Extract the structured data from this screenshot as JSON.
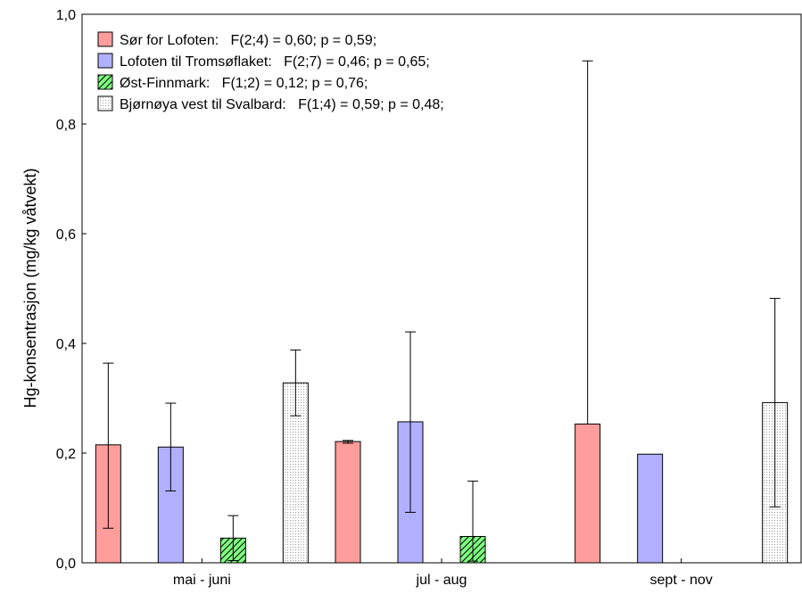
{
  "chart_data": {
    "type": "bar",
    "title": "",
    "xlabel": "",
    "ylabel": "Hg-konsentrasjon (mg/kg våtvekt)",
    "ylim": [
      0,
      1.0
    ],
    "yticks": [
      "0,0",
      "0,2",
      "0,4",
      "0,6",
      "0,8",
      "1,0"
    ],
    "grid": false,
    "legend_position": "top-left",
    "categories": [
      "mai - juni",
      "jul - aug",
      "sept - nov"
    ],
    "series": [
      {
        "name": "Sør for Lofoten:   F(2;4) = 0,60; p = 0,59;",
        "fill": "#ff9d9d",
        "pattern": "solid",
        "values": [
          0.215,
          0.221,
          0.253
        ],
        "err_low": [
          0.063,
          0.218,
          null
        ],
        "err_high": [
          0.364,
          0.223,
          0.915
        ]
      },
      {
        "name": "Lofoten til Tromsøflaket:   F(2;7) = 0,46; p = 0,65;",
        "fill": "#b0b0ff",
        "pattern": "solid",
        "values": [
          0.211,
          0.257,
          0.198
        ],
        "err_low": [
          0.131,
          0.092,
          null
        ],
        "err_high": [
          0.291,
          0.421,
          null
        ]
      },
      {
        "name": "Øst-Finnmark:   F(1;2) = 0,12; p = 0,76;",
        "fill": "#80ff80",
        "pattern": "hatch",
        "values": [
          0.045,
          0.048,
          null
        ],
        "err_low": [
          0.004,
          0.003,
          null
        ],
        "err_high": [
          0.086,
          0.149,
          null
        ]
      },
      {
        "name": "Bjørnøya vest til Svalbard:   F(1;4) = 0,59; p = 0,48;",
        "fill": "#ffffff",
        "pattern": "dots",
        "values": [
          0.328,
          null,
          0.292
        ],
        "err_low": [
          0.268,
          null,
          0.102
        ],
        "err_high": [
          0.388,
          null,
          0.482
        ]
      }
    ]
  }
}
